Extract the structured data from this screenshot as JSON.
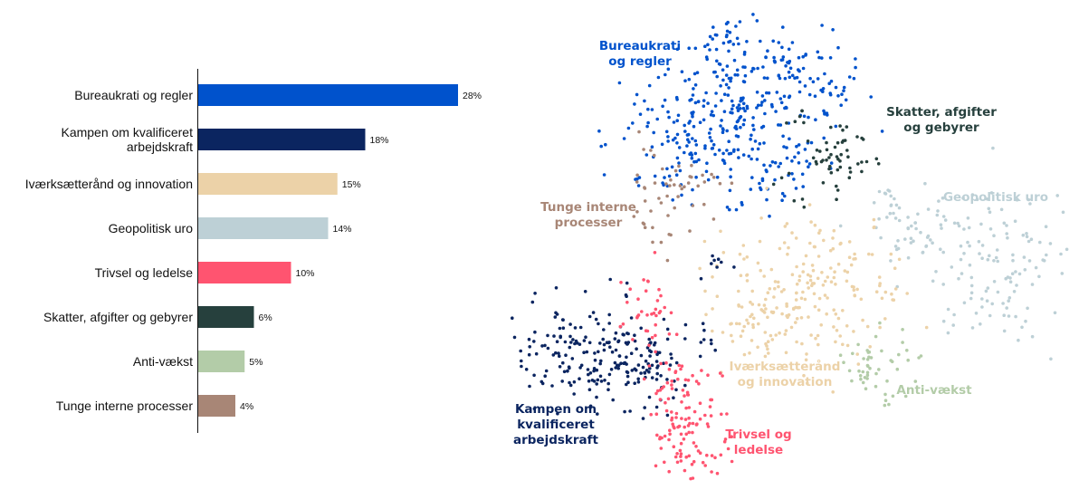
{
  "chart_data": [
    {
      "type": "bar",
      "orientation": "horizontal",
      "categories": [
        "Bureaukrati og regler",
        "Kampen om kvalificeret arbejdskraft",
        "Iværksætterånd og innovation",
        "Geopolitisk uro",
        "Trivsel og ledelse",
        "Skatter, afgifter og gebyrer",
        "Anti-vækst",
        "Tunge interne processer"
      ],
      "values": [
        28,
        18,
        15,
        14,
        10,
        6,
        5,
        4
      ],
      "value_labels": [
        "28%",
        "18%",
        "15%",
        "14%",
        "10%",
        "6%",
        "5%",
        "4%"
      ],
      "colors": [
        "#0052cc",
        "#0b2560",
        "#ecd2a8",
        "#bdd0d6",
        "#ff5470",
        "#26403d",
        "#b3cca8",
        "#a88676"
      ],
      "xlim": [
        0,
        30
      ],
      "grid": false,
      "legend": "none"
    },
    {
      "type": "scatter",
      "clusters": [
        {
          "name": "Bureaukrati og regler",
          "color": "#0052cc"
        },
        {
          "name": "Skatter, afgifter og gebyrer",
          "color": "#26403d"
        },
        {
          "name": "Geopolitisk uro",
          "color": "#bdd0d6"
        },
        {
          "name": "Tunge interne processer",
          "color": "#a88676"
        },
        {
          "name": "Iværksætterånd og innovation",
          "color": "#ecd2a8"
        },
        {
          "name": "Anti-vækst",
          "color": "#b3cca8"
        },
        {
          "name": "Kampen om kvalificeret arbejdskraft",
          "color": "#0b2560"
        },
        {
          "name": "Trivsel og ledelse",
          "color": "#ff5470"
        }
      ],
      "labels": [
        {
          "lines": [
            "Bureaukrati",
            "og regler"
          ],
          "color": "#0052cc"
        },
        {
          "lines": [
            "Skatter, afgifter",
            "og gebyrer"
          ],
          "color": "#26403d"
        },
        {
          "lines": [
            "Geopolitisk uro"
          ],
          "color": "#bdd0d6"
        },
        {
          "lines": [
            "Tunge interne",
            "processer"
          ],
          "color": "#a88676"
        },
        {
          "lines": [
            "Iværksætterånd",
            "og innovation"
          ],
          "color": "#ecd2a8"
        },
        {
          "lines": [
            "Anti-vækst"
          ],
          "color": "#b3cca8"
        },
        {
          "lines": [
            "Kampen om",
            "kvalificeret",
            "arbejdskraft"
          ],
          "color": "#0b2560"
        },
        {
          "lines": [
            "Trivsel og",
            "ledelse"
          ],
          "color": "#ff5470"
        }
      ],
      "axes": false
    }
  ]
}
